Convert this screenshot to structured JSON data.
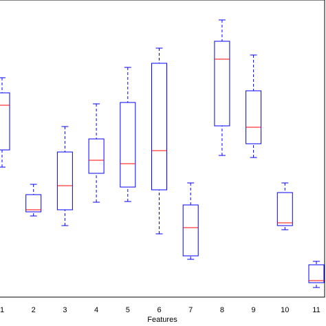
{
  "chart_data": {
    "type": "box",
    "xlabel": "Features",
    "categories": [
      "1",
      "2",
      "3",
      "4",
      "5",
      "6",
      "7",
      "8",
      "9",
      "10",
      "11"
    ],
    "whisker_low": [
      189,
      118,
      104,
      138,
      139,
      92,
      55,
      206,
      203,
      98,
      14
    ],
    "q1": [
      214,
      124,
      127,
      180,
      160,
      156,
      60,
      249,
      223,
      104,
      21
    ],
    "median": [
      279,
      127,
      162,
      199,
      194,
      213,
      101,
      346,
      247,
      108,
      24
    ],
    "q3": [
      297,
      149,
      211,
      230,
      283,
      340,
      134,
      372,
      300,
      152,
      47
    ],
    "whisker_high": [
      319,
      164,
      248,
      281,
      334,
      362,
      166,
      403,
      352,
      166,
      52
    ],
    "color": "#0000ff",
    "median_color": "#ff0000",
    "ylim": [
      0,
      432
    ]
  }
}
